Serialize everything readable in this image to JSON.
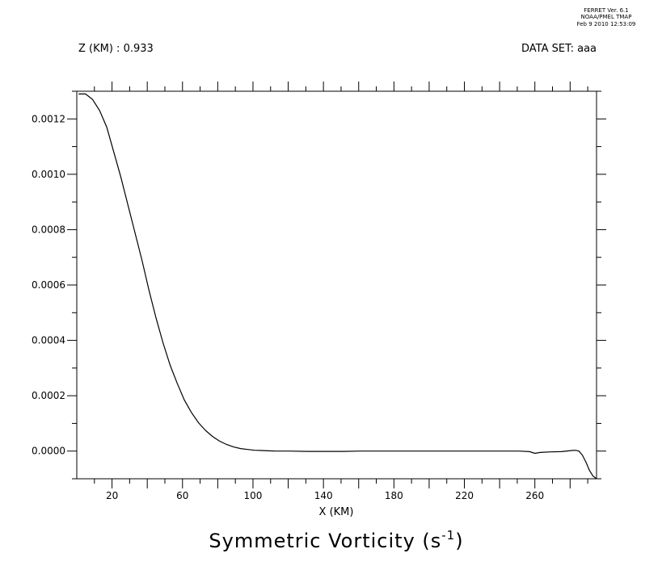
{
  "header": {
    "ferret_lines": [
      "FERRET Ver. 6.1",
      "NOAA/PMEL TMAP",
      "Feb  9 2010 12:53:09"
    ],
    "z_label": "Z (KM) : 0.933",
    "dataset_label": "DATA SET: aaa"
  },
  "chart_data": {
    "type": "line",
    "title": "Symmetric Vorticity (s",
    "title_exponent": "-1",
    "title_close": ")",
    "xlabel": "X (KM)",
    "ylabel": "",
    "xlim": [
      0,
      295
    ],
    "ylim": [
      -0.0001,
      0.0013
    ],
    "x_ticks": [
      20,
      60,
      100,
      140,
      180,
      220,
      260
    ],
    "x_tick_labels": [
      "20",
      "60",
      "100",
      "140",
      "180",
      "220",
      "260"
    ],
    "y_ticks": [
      0.0,
      0.0002,
      0.0004,
      0.0006,
      0.0008,
      0.001,
      0.0012
    ],
    "y_tick_labels": [
      "0.0000",
      "0.0002",
      "0.0004",
      "0.0006",
      "0.0008",
      "0.0010",
      "0.0012"
    ],
    "grid": false,
    "series": [
      {
        "x": [
          1,
          5,
          9,
          13,
          17,
          21,
          25,
          29,
          33,
          37,
          41,
          45,
          49,
          53,
          57,
          61,
          65,
          69,
          73,
          77,
          81,
          85,
          89,
          93,
          97,
          101,
          105,
          109,
          113,
          121,
          131,
          141,
          151,
          161,
          171,
          181,
          191,
          201,
          211,
          221,
          231,
          241,
          251,
          257,
          260,
          263,
          269,
          275,
          281,
          283,
          285,
          287,
          289,
          291,
          293,
          295
        ],
        "y": [
          0.00129,
          0.00129,
          0.00127,
          0.00123,
          0.00117,
          0.00108,
          0.00099,
          0.00089,
          0.00079,
          0.00069,
          0.00058,
          0.00048,
          0.00039,
          0.00031,
          0.000245,
          0.000185,
          0.00014,
          0.000103,
          7.5e-05,
          5.3e-05,
          3.6e-05,
          2.4e-05,
          1.5e-05,
          9e-06,
          6e-06,
          3e-06,
          2e-06,
          1e-06,
          0.0,
          0.0,
          -1e-06,
          -1e-06,
          -1e-06,
          0.0,
          0.0,
          0.0,
          0.0,
          0.0,
          0.0,
          0.0,
          0.0,
          0.0,
          0.0,
          -2e-06,
          -8e-06,
          -5e-06,
          -3e-06,
          -2e-06,
          2e-06,
          3e-06,
          0.0,
          -1.5e-05,
          -4e-05,
          -7e-05,
          -9e-05,
          -0.0001
        ]
      }
    ]
  }
}
